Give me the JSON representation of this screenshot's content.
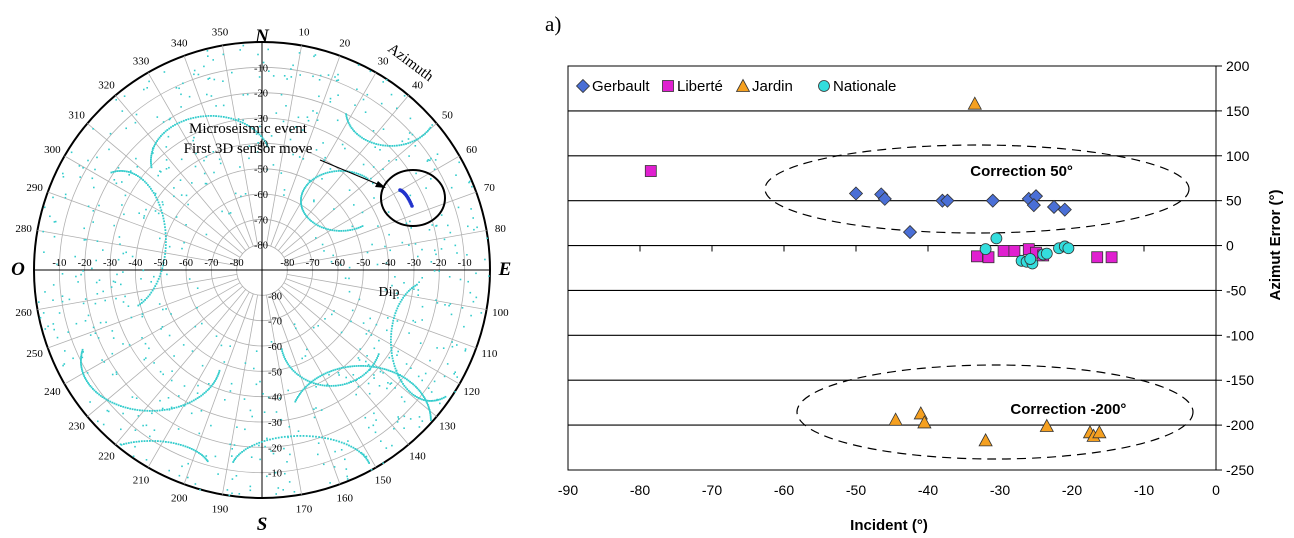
{
  "panel_label": "a)",
  "polar_plot": {
    "compass": {
      "north": "N",
      "south": "S",
      "east": "E",
      "west": "O"
    },
    "azimuth_label": "Azimuth",
    "dip_label": "Dip",
    "annotation": [
      "Microseismic event",
      "First 3D sensor move"
    ],
    "azimuth_ticks": [
      "10",
      "20",
      "30",
      "40",
      "50",
      "60",
      "70",
      "80",
      "100",
      "110",
      "120",
      "130",
      "140",
      "150",
      "160",
      "170",
      "190",
      "200",
      "210",
      "220",
      "230",
      "240",
      "250",
      "260",
      "280",
      "290",
      "300",
      "310",
      "320",
      "330",
      "340",
      "350"
    ],
    "dip_ticks": [
      "-10",
      "-20",
      "-30",
      "-40",
      "-50",
      "-60",
      "-70",
      "-80"
    ],
    "point_color": "#33cccc",
    "highlight_color": "#2233cc"
  },
  "chart_data": {
    "type": "scatter",
    "title": "",
    "xlabel": "Incident (°)",
    "ylabel": "Azimut Error (°)",
    "xlim": [
      -90,
      0
    ],
    "ylim": [
      -250,
      200
    ],
    "x_ticks": [
      "-90",
      "-80",
      "-70",
      "-60",
      "-50",
      "-40",
      "-30",
      "-20",
      "-10",
      "0"
    ],
    "y_ticks": [
      "200",
      "150",
      "100",
      "50",
      "0",
      "-50",
      "-100",
      "-150",
      "-200",
      "-250"
    ],
    "grid": "horizontal",
    "legend_position": "top-left",
    "series": [
      {
        "name": "Gerbault",
        "marker": "diamond",
        "color": "#4a6fd6",
        "points": [
          [
            -50,
            58
          ],
          [
            -46.5,
            57
          ],
          [
            -46,
            52
          ],
          [
            -42.5,
            15
          ],
          [
            -38,
            50
          ],
          [
            -37.3,
            50
          ],
          [
            -31,
            50
          ],
          [
            -26,
            52
          ],
          [
            -25,
            55
          ],
          [
            -25.3,
            45
          ],
          [
            -22.5,
            43
          ],
          [
            -21,
            40
          ]
        ]
      },
      {
        "name": "Liberté",
        "marker": "square",
        "color": "#e020d0",
        "points": [
          [
            -78.5,
            83
          ],
          [
            -33.2,
            -12
          ],
          [
            -31.6,
            -13
          ],
          [
            -29.5,
            -6
          ],
          [
            -28,
            -6
          ],
          [
            -26,
            -4
          ],
          [
            -25,
            -8
          ],
          [
            -24,
            -11
          ],
          [
            -16.5,
            -13
          ],
          [
            -14.5,
            -13
          ]
        ]
      },
      {
        "name": "Jardin",
        "marker": "triangle",
        "color": "#f5a020",
        "points": [
          [
            -33.5,
            158
          ],
          [
            -44.5,
            -194
          ],
          [
            -41,
            -187
          ],
          [
            -40.5,
            -197
          ],
          [
            -32,
            -217
          ],
          [
            -23.5,
            -201
          ],
          [
            -17.5,
            -208
          ],
          [
            -17,
            -212
          ],
          [
            -16.2,
            -208
          ]
        ]
      },
      {
        "name": "Nationale",
        "marker": "circle",
        "color": "#33dddd",
        "points": [
          [
            -30.5,
            8
          ],
          [
            -32,
            -4
          ],
          [
            -27,
            -17
          ],
          [
            -26.3,
            -18
          ],
          [
            -25.5,
            -20
          ],
          [
            -25.8,
            -15
          ],
          [
            -24,
            -10
          ],
          [
            -23.5,
            -9
          ],
          [
            -21.8,
            -3
          ],
          [
            -21,
            -1
          ],
          [
            -20.5,
            -3
          ]
        ]
      }
    ],
    "annotations": [
      {
        "text": "Correction 50°",
        "x": -27,
        "y": 83
      },
      {
        "text": "Correction -200°",
        "x": -20.5,
        "y": -182
      }
    ]
  }
}
